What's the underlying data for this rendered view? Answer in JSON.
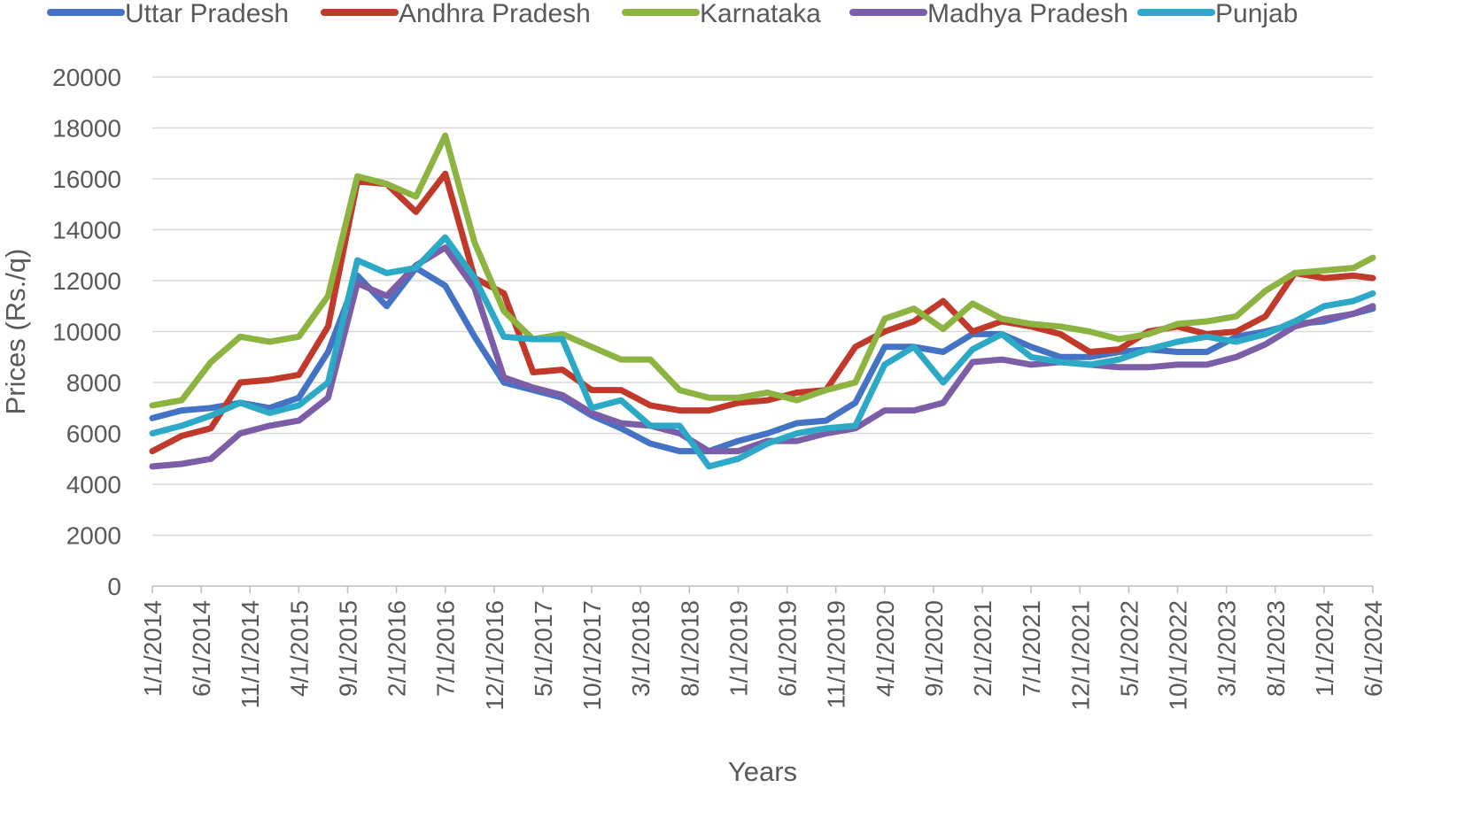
{
  "chart_data": {
    "type": "line",
    "title": "",
    "xlabel": "Years",
    "ylabel": "Prices (Rs./q)",
    "ylim": [
      0,
      20000
    ],
    "yticks": [
      0,
      2000,
      4000,
      6000,
      8000,
      10000,
      12000,
      14000,
      16000,
      18000,
      20000
    ],
    "grid": "horizontal",
    "legend": "top",
    "x_tick_labels": [
      "1/1/2014",
      "6/1/2014",
      "11/1/2014",
      "4/1/2015",
      "9/1/2015",
      "2/1/2016",
      "7/1/2016",
      "12/1/2016",
      "5/1/2017",
      "10/1/2017",
      "3/1/2018",
      "8/1/2018",
      "1/1/2019",
      "6/1/2019",
      "11/1/2019",
      "4/1/2020",
      "9/1/2020",
      "2/1/2021",
      "7/1/2021",
      "12/1/2021",
      "5/1/2022",
      "10/1/2022",
      "3/1/2023",
      "8/1/2023",
      "1/1/2024",
      "6/1/2024"
    ],
    "x": [
      "2014-01",
      "2014-04",
      "2014-07",
      "2014-10",
      "2015-01",
      "2015-04",
      "2015-07",
      "2015-10",
      "2016-01",
      "2016-04",
      "2016-07",
      "2016-10",
      "2017-01",
      "2017-04",
      "2017-07",
      "2017-10",
      "2018-01",
      "2018-04",
      "2018-07",
      "2018-10",
      "2019-01",
      "2019-04",
      "2019-07",
      "2019-10",
      "2020-01",
      "2020-04",
      "2020-07",
      "2020-10",
      "2021-01",
      "2021-04",
      "2021-07",
      "2021-10",
      "2022-01",
      "2022-04",
      "2022-07",
      "2022-10",
      "2023-01",
      "2023-04",
      "2023-07",
      "2023-10",
      "2024-01",
      "2024-04",
      "2024-06"
    ],
    "series": [
      {
        "name": "Uttar Pradesh",
        "color": "#4472C4",
        "values": [
          6600,
          6900,
          7000,
          7200,
          7000,
          7400,
          9200,
          12200,
          11000,
          12500,
          11800,
          9800,
          8000,
          7700,
          7400,
          6700,
          6200,
          5600,
          5300,
          5300,
          5700,
          6000,
          6400,
          6500,
          7200,
          9400,
          9400,
          9200,
          9900,
          9900,
          9400,
          9000,
          9000,
          9200,
          9300,
          9200,
          9200,
          9800,
          10000,
          10300,
          10400,
          10700,
          10900
        ]
      },
      {
        "name": "Andhra Pradesh",
        "color": "#C0392B",
        "values": [
          5300,
          5900,
          6200,
          8000,
          8100,
          8300,
          10200,
          15900,
          15800,
          14700,
          16200,
          12100,
          11500,
          8400,
          8500,
          7700,
          7700,
          7100,
          6900,
          6900,
          7200,
          7300,
          7600,
          7700,
          9400,
          10000,
          10400,
          11200,
          10000,
          10400,
          10200,
          9900,
          9200,
          9300,
          10000,
          10200,
          9900,
          10000,
          10600,
          12300,
          12100,
          12200,
          12100
        ]
      },
      {
        "name": "Karnataka",
        "color": "#8DB441",
        "values": [
          7100,
          7300,
          8800,
          9800,
          9600,
          9800,
          11400,
          16100,
          15800,
          15300,
          17700,
          13500,
          10800,
          9700,
          9900,
          9400,
          8900,
          8900,
          7700,
          7400,
          7400,
          7600,
          7300,
          7700,
          8000,
          10500,
          10900,
          10100,
          11100,
          10500,
          10300,
          10200,
          10000,
          9700,
          9900,
          10300,
          10400,
          10600,
          11600,
          12300,
          12400,
          12500,
          12900
        ]
      },
      {
        "name": "Madhya Pradesh",
        "color": "#7B5EA7",
        "values": [
          4700,
          4800,
          5000,
          6000,
          6300,
          6500,
          7400,
          11900,
          11400,
          12600,
          13300,
          11700,
          8200,
          7800,
          7500,
          6800,
          6400,
          6300,
          6000,
          5300,
          5300,
          5700,
          5700,
          6000,
          6200,
          6900,
          6900,
          7200,
          8800,
          8900,
          8700,
          8800,
          8700,
          8600,
          8600,
          8700,
          8700,
          9000,
          9500,
          10200,
          10500,
          10700,
          11000
        ]
      },
      {
        "name": "Punjab",
        "color": "#2CA9C7",
        "values": [
          6000,
          6300,
          6700,
          7200,
          6800,
          7100,
          8000,
          12800,
          12300,
          12500,
          13700,
          12100,
          9800,
          9700,
          9700,
          7000,
          7300,
          6300,
          6300,
          4700,
          5000,
          5600,
          6000,
          6200,
          6300,
          8700,
          9400,
          8000,
          9300,
          9900,
          9000,
          8800,
          8700,
          8900,
          9300,
          9600,
          9800,
          9600,
          9900,
          10400,
          11000,
          11200,
          11500
        ]
      }
    ]
  }
}
